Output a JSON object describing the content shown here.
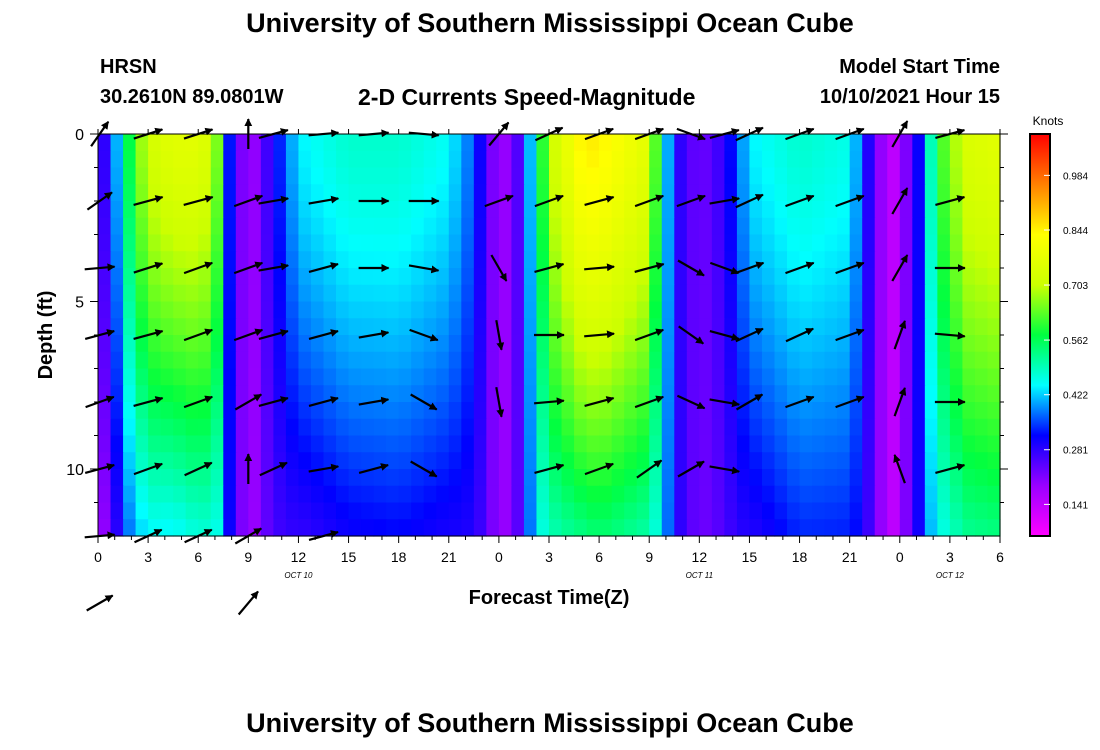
{
  "header": {
    "title": "University of Southern Mississippi Ocean Cube",
    "station": "HRSN",
    "coordinates": "30.2610N  89.0801W",
    "model_start_label": "Model Start Time",
    "model_start_value": "10/10/2021 Hour 15"
  },
  "footer": {
    "title": "University of Southern Mississippi Ocean Cube"
  },
  "chart_data": {
    "type": "heatmap",
    "title": "2-D Currents Speed-Magnitude",
    "xlabel": "Forecast Time(Z)",
    "ylabel": "Depth (ft)",
    "xlim": [
      0,
      54
    ],
    "ylim": [
      0,
      12
    ],
    "x_tick_values": [
      0,
      3,
      6,
      9,
      12,
      15,
      18,
      21,
      24,
      27,
      30,
      33,
      36,
      39,
      42,
      45,
      48,
      51,
      54
    ],
    "x_tick_labels": [
      "0",
      "3",
      "6",
      "9",
      "12",
      "15",
      "18",
      "21",
      "0",
      "3",
      "6",
      "9",
      "12",
      "15",
      "18",
      "21",
      "0",
      "3",
      "6"
    ],
    "y_tick_values": [
      0,
      5,
      10
    ],
    "y_tick_labels": [
      "0",
      "5",
      "10"
    ],
    "date_labels": [
      {
        "x": 12,
        "label": "OCT 10"
      },
      {
        "x": 36,
        "label": "OCT 11"
      },
      {
        "x": 51,
        "label": "OCT 12"
      }
    ],
    "colorbar": {
      "unit": "Knots",
      "ticks": [
        "0.984",
        "0.844",
        "0.703",
        "0.562",
        "0.422",
        "0.281",
        "0.141"
      ],
      "tick_values": [
        0.984,
        0.844,
        0.703,
        0.562,
        0.422,
        0.281,
        0.141
      ],
      "range": [
        0.06,
        1.09
      ],
      "colors": [
        "#ff00ff",
        "#9a00ff",
        "#0000ff",
        "#00ffff",
        "#00ff40",
        "#ccff00",
        "#ffff00",
        "#ff8000",
        "#ff0000"
      ]
    },
    "speed_profile": {
      "hours": [
        0,
        1,
        2,
        3,
        4.5,
        6,
        7,
        7.6,
        8.2,
        9.2,
        10.5,
        12,
        15,
        18,
        21,
        22.5,
        23.5,
        24.8,
        26,
        27,
        29,
        30,
        33,
        33.6,
        34.5,
        36,
        37.5,
        39,
        42,
        45,
        45.8,
        46.5,
        47.7,
        49,
        50.3,
        52,
        54
      ],
      "speed_surface": [
        0.22,
        0.38,
        0.6,
        0.72,
        0.76,
        0.76,
        0.72,
        0.4,
        0.24,
        0.18,
        0.3,
        0.44,
        0.48,
        0.48,
        0.45,
        0.36,
        0.22,
        0.18,
        0.44,
        0.7,
        0.85,
        0.85,
        0.76,
        0.55,
        0.3,
        0.22,
        0.28,
        0.44,
        0.48,
        0.46,
        0.35,
        0.22,
        0.14,
        0.28,
        0.6,
        0.74,
        0.76
      ],
      "bottom_factor": [
        0.7,
        0.7,
        0.65,
        0.62,
        0.58,
        0.62,
        0.65,
        0.9,
        1.0,
        1.0,
        0.85,
        0.62,
        0.64,
        0.66,
        0.66,
        0.8,
        1.0,
        1.0,
        0.9,
        0.7,
        0.62,
        0.64,
        0.66,
        0.8,
        1.0,
        1.0,
        0.9,
        0.65,
        0.7,
        0.72,
        0.85,
        1.0,
        1.0,
        1.0,
        0.75,
        0.7,
        0.7
      ]
    },
    "vector_columns": [
      {
        "hour": 0.1,
        "angles": [
          -55,
          -35,
          -5,
          -15,
          -20,
          -15,
          -5,
          -30
        ]
      },
      {
        "hour": 3,
        "angles": [
          -18,
          -15,
          -18,
          -15,
          -15,
          -20,
          -25
        ]
      },
      {
        "hour": 6,
        "angles": [
          -18,
          -15,
          -20,
          -20,
          -20,
          -25,
          -25
        ]
      },
      {
        "hour": 9,
        "angles": [
          -90,
          -20,
          -20,
          -20,
          -30,
          270,
          -30,
          -50
        ]
      },
      {
        "hour": 10.5,
        "angles": [
          -15,
          -10,
          -10,
          -15,
          -15,
          -25
        ]
      },
      {
        "hour": 13.5,
        "angles": [
          -5,
          -10,
          -15,
          -15,
          -15,
          -10,
          -15
        ]
      },
      {
        "hour": 16.5,
        "angles": [
          -5,
          0,
          0,
          -10,
          -10,
          -15
        ]
      },
      {
        "hour": 19.5,
        "angles": [
          5,
          0,
          10,
          20,
          30,
          30
        ]
      },
      {
        "hour": 24,
        "angles": [
          -50,
          -20,
          60,
          80,
          80
        ]
      },
      {
        "hour": 27,
        "angles": [
          -25,
          -20,
          -15,
          0,
          -5,
          -15
        ]
      },
      {
        "hour": 30,
        "angles": [
          -20,
          -15,
          -5,
          -5,
          -15,
          -20
        ]
      },
      {
        "hour": 33,
        "angles": [
          -20,
          -20,
          -15,
          -20,
          -20,
          -35
        ]
      },
      {
        "hour": 35.5,
        "angles": [
          20,
          -20,
          30,
          35,
          25,
          -30
        ]
      },
      {
        "hour": 37.5,
        "angles": [
          -15,
          -10,
          20,
          15,
          10,
          10
        ]
      },
      {
        "hour": 39,
        "angles": [
          -25,
          -25,
          -20,
          -25,
          -30
        ]
      },
      {
        "hour": 42,
        "angles": [
          -20,
          -20,
          -20,
          -25,
          -20
        ]
      },
      {
        "hour": 45,
        "angles": [
          -20,
          -20,
          -20,
          -20,
          -20
        ]
      },
      {
        "hour": 48,
        "angles": [
          -60,
          -60,
          -60,
          -70,
          -70,
          250
        ]
      },
      {
        "hour": 51,
        "angles": [
          -15,
          -15,
          0,
          5,
          0,
          -15
        ]
      }
    ]
  }
}
